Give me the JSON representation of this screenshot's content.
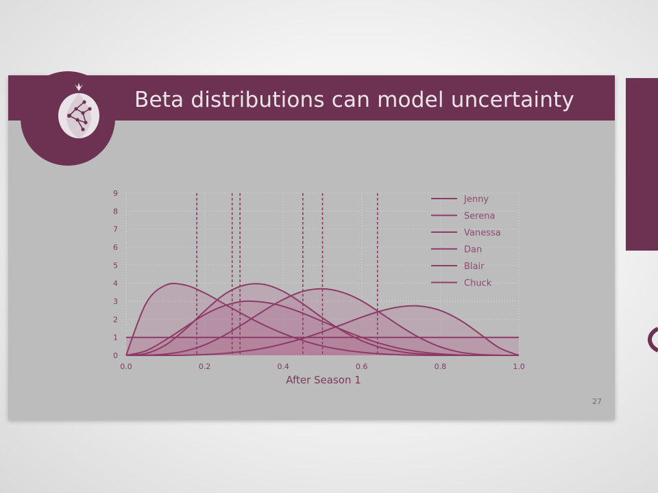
{
  "slide": {
    "title": "Beta distributions can model uncertainty",
    "page_number": "27"
  },
  "colors": {
    "brand": "#6d3251",
    "slide_bg": "#bdbcbd",
    "title_text": "#ece4e9",
    "curve": "#8c3a66",
    "fill": "#b27796"
  },
  "chart_data": {
    "type": "line",
    "xlabel": "After Season 1",
    "ylabel": "",
    "xlim": [
      0.0,
      1.0
    ],
    "ylim": [
      0,
      9
    ],
    "xticks": [
      "0.0",
      "0.2",
      "0.4",
      "0.6",
      "0.8",
      "1.0"
    ],
    "yticks": [
      "0",
      "1",
      "2",
      "3",
      "4",
      "5",
      "6",
      "7",
      "8",
      "9"
    ],
    "grid": true,
    "legend_position": "top-right",
    "x": [
      0.0,
      0.05,
      0.1,
      0.15,
      0.2,
      0.25,
      0.3,
      0.35,
      0.4,
      0.45,
      0.5,
      0.55,
      0.6,
      0.65,
      0.7,
      0.75,
      0.8,
      0.85,
      0.9,
      0.95,
      1.0
    ],
    "series": [
      {
        "name": "Jenny",
        "values": [
          0.0,
          2.86,
          3.89,
          3.9,
          3.46,
          2.85,
          2.25,
          1.69,
          1.21,
          0.82,
          0.52,
          0.31,
          0.17,
          0.08,
          0.03,
          0.01,
          0.0,
          0.0,
          0.0,
          0.0,
          0.0
        ],
        "mean": 0.18
      },
      {
        "name": "Serena",
        "values": [
          0.0,
          0.25,
          0.85,
          1.56,
          2.26,
          2.75,
          3.0,
          2.95,
          2.72,
          2.34,
          1.88,
          1.42,
          1.0,
          0.64,
          0.37,
          0.19,
          0.08,
          0.02,
          0.0,
          0.0,
          0.0
        ],
        "mean": 0.27
      },
      {
        "name": "Vanessa",
        "values": [
          0.0,
          0.1,
          0.57,
          1.43,
          2.46,
          3.38,
          3.89,
          3.94,
          3.55,
          2.86,
          2.08,
          1.37,
          0.81,
          0.43,
          0.2,
          0.08,
          0.03,
          0.01,
          0.0,
          0.0,
          0.0
        ],
        "mean": 0.29
      },
      {
        "name": "Dan",
        "values": [
          0.0,
          0.01,
          0.07,
          0.24,
          0.58,
          1.11,
          1.77,
          2.47,
          3.1,
          3.55,
          3.69,
          3.5,
          3.02,
          2.32,
          1.59,
          0.95,
          0.47,
          0.18,
          0.05,
          0.01,
          0.0
        ],
        "mean": 0.45
      },
      {
        "name": "Blair",
        "values": [
          1.0,
          1.0,
          1.0,
          1.0,
          1.0,
          1.0,
          1.0,
          1.0,
          1.0,
          1.0,
          1.0,
          1.0,
          1.0,
          1.0,
          1.0,
          1.0,
          1.0,
          1.0,
          1.0,
          1.0,
          1.0
        ],
        "mean": 0.5
      },
      {
        "name": "Chuck",
        "values": [
          0.0,
          0.0,
          0.0,
          0.01,
          0.04,
          0.11,
          0.23,
          0.4,
          0.64,
          0.94,
          1.31,
          1.71,
          2.12,
          2.47,
          2.7,
          2.73,
          2.49,
          1.96,
          1.2,
          0.42,
          0.0
        ],
        "mean": 0.64
      }
    ]
  }
}
